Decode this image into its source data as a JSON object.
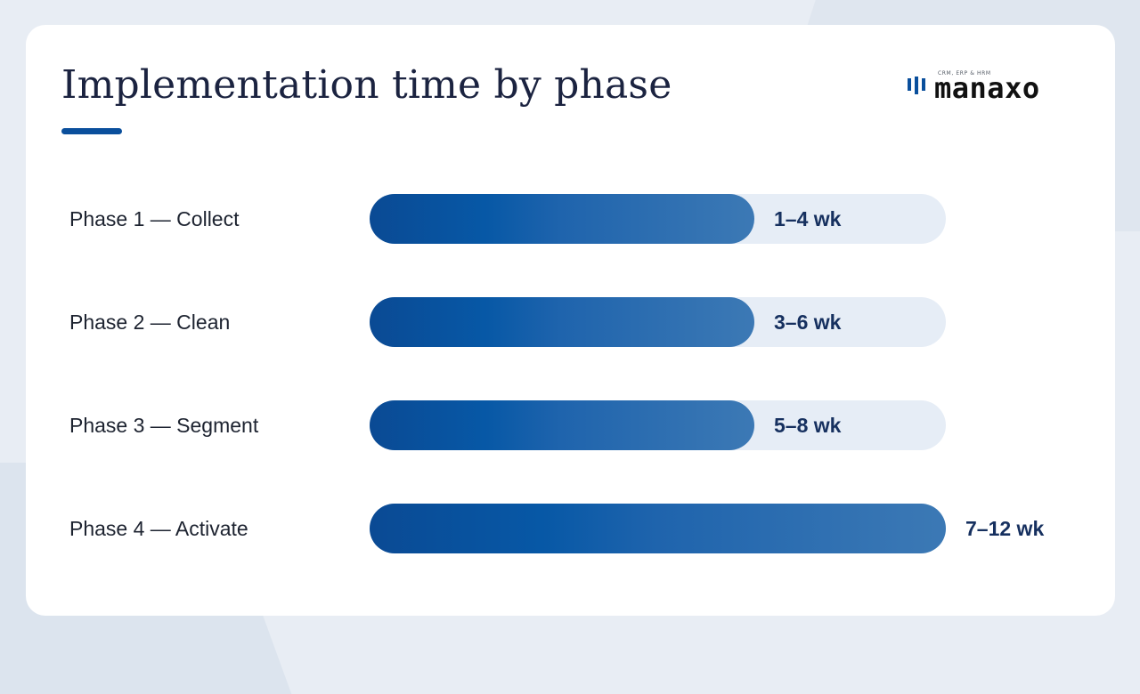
{
  "slide": {
    "title": "Implementation time by phase",
    "accent_color": "#0a4f9c"
  },
  "logo": {
    "wordmark": "manaxo",
    "tagline": "CRM, ERP & HRM"
  },
  "chart_data": {
    "type": "bar",
    "orientation": "horizontal",
    "title": "Implementation time by phase",
    "unit": "wk",
    "categories": [
      "Phase 1 — Collect",
      "Phase 2 — Clean",
      "Phase 3 — Segment",
      "Phase 4 — Activate"
    ],
    "ranges": [
      [
        1,
        4
      ],
      [
        3,
        6
      ],
      [
        5,
        8
      ],
      [
        7,
        12
      ]
    ],
    "value_labels": [
      "1–4 wk",
      "3–6 wk",
      "5–8 wk",
      "7–12 wk"
    ],
    "filled_fraction": [
      0.667,
      0.667,
      0.667,
      1.0
    ],
    "bar_color": "#0a4f9c",
    "track_color": "#e6edf6",
    "grid": false,
    "legend": "none"
  }
}
